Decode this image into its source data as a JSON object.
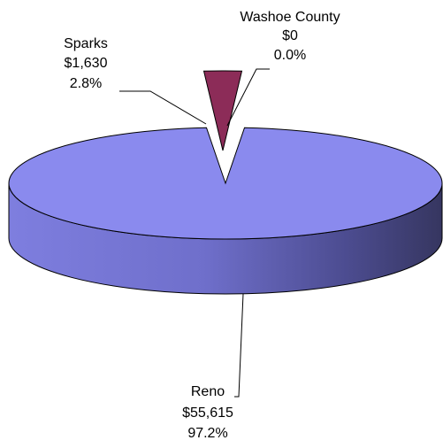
{
  "chart_data": {
    "type": "pie",
    "title": "",
    "three_d": true,
    "legend": "none",
    "slices": [
      {
        "label": "Reno",
        "value_text": "$55,615",
        "percent_text": "97.2%",
        "value": 55615,
        "percent": 97.2,
        "color": "#8a8aee",
        "exploded": false
      },
      {
        "label": "Sparks",
        "value_text": "$1,630",
        "percent_text": "2.8%",
        "value": 1630,
        "percent": 2.8,
        "color": "#8c2c58",
        "exploded": true
      },
      {
        "label": "Washoe County",
        "value_text": "$0",
        "percent_text": "0.0%",
        "value": 0,
        "percent": 0.0,
        "color": "#8a8aee",
        "exploded": false
      }
    ]
  }
}
